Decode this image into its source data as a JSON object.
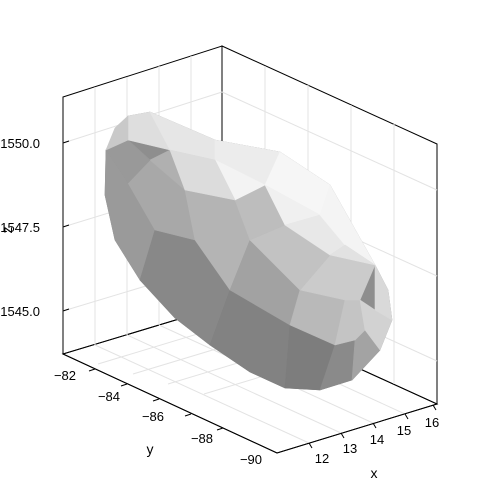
{
  "chart_data": {
    "type": "3d-surface",
    "title": "",
    "axes": {
      "x": {
        "label": "x",
        "ticks": [
          "12",
          "13",
          "14",
          "15",
          "16"
        ]
      },
      "y": {
        "label": "y",
        "ticks": [
          "−82",
          "−84",
          "−86",
          "−88",
          "−90"
        ]
      },
      "z": {
        "label": "z",
        "ticks": [
          "1545.0",
          "1547.5",
          "1550.0"
        ]
      }
    },
    "grid": true,
    "surface_color": "#a9a9a9",
    "highlight_color": "#f4f4f4",
    "shadow_color": "#6f6f6f"
  }
}
